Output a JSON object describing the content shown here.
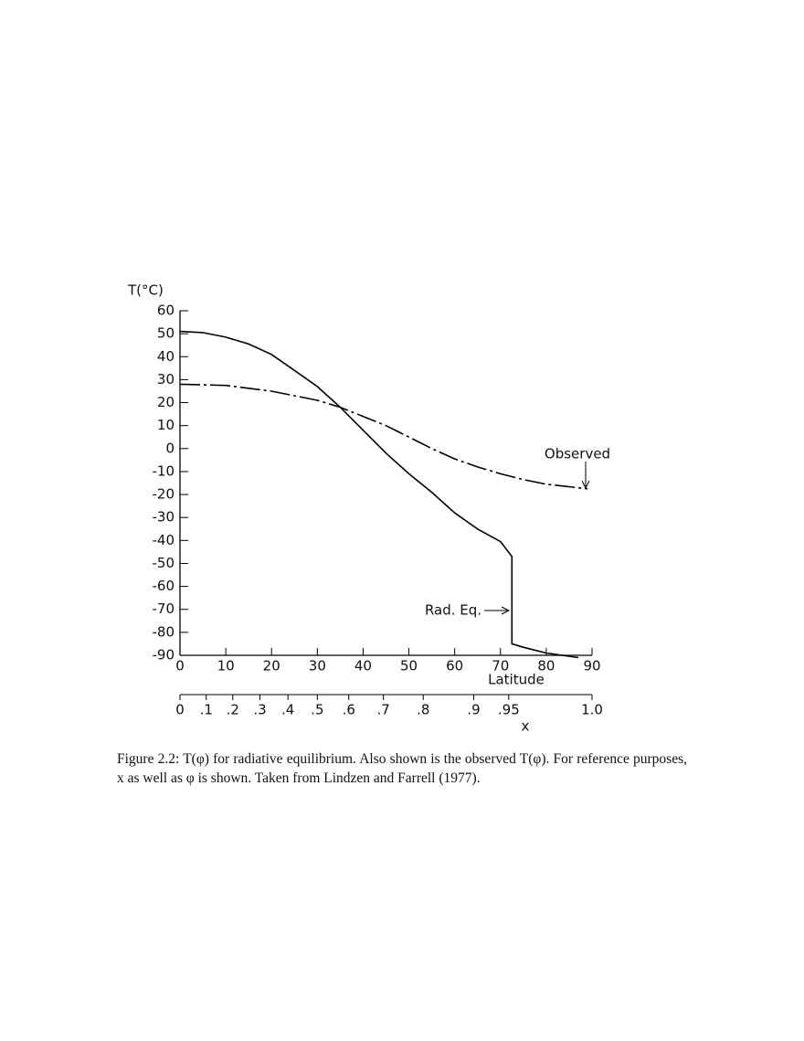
{
  "chart_data": {
    "type": "line",
    "ylabel": "T(°C)",
    "xlabel": "Latitude",
    "xlim": [
      0,
      90
    ],
    "xticks": [
      0,
      10,
      20,
      30,
      40,
      50,
      60,
      70,
      80,
      90
    ],
    "ylim": [
      -90,
      60
    ],
    "yticks": [
      -90,
      -80,
      -70,
      -60,
      -50,
      -40,
      -30,
      -20,
      -10,
      0,
      10,
      20,
      30,
      40,
      50,
      60
    ],
    "secondary_axis": {
      "label": "x",
      "ticks": [
        0,
        {
          "value": 0.1,
          "label": ".1"
        },
        {
          "value": 0.2,
          "label": ".2"
        },
        {
          "value": 0.3,
          "label": ".3"
        },
        {
          "value": 0.4,
          "label": ".4"
        },
        {
          "value": 0.5,
          "label": ".5"
        },
        {
          "value": 0.6,
          "label": ".6"
        },
        {
          "value": 0.7,
          "label": ".7"
        },
        {
          "value": 0.8,
          "label": ".8"
        },
        {
          "value": 0.9,
          "label": ".9"
        },
        {
          "value": 0.95,
          "label": ".95"
        },
        {
          "value": 1,
          "label": "1.0"
        }
      ]
    },
    "series": [
      {
        "name": "Rad. Eq.",
        "color": "#000000",
        "dashed": false,
        "x": [
          0,
          5,
          10,
          15,
          20,
          25,
          30,
          35,
          40,
          45,
          50,
          55,
          60,
          65,
          70,
          72.5,
          72.5,
          75,
          80,
          87
        ],
        "values": [
          51,
          50.5,
          48.5,
          45.5,
          41,
          34,
          27,
          18,
          8,
          -2,
          -11,
          -19,
          -28,
          -35,
          -40.5,
          -47,
          -85,
          -86.5,
          -89,
          -91
        ]
      },
      {
        "name": "Observed",
        "color": "#000000",
        "dashed": true,
        "x": [
          0,
          10,
          20,
          30,
          35,
          40,
          45,
          50,
          55,
          60,
          65,
          70,
          75,
          80,
          89
        ],
        "values": [
          28,
          27.5,
          25,
          21,
          18,
          14,
          10,
          5,
          0,
          -4.5,
          -8,
          -11,
          -13.5,
          -15.5,
          -17.5
        ]
      }
    ]
  },
  "caption": "Figure 2.2: T(φ) for radiative equilibrium. Also shown is the observed T(φ). For reference purposes, x as well as φ is shown. Taken from Lindzen and Farrell (1977)."
}
